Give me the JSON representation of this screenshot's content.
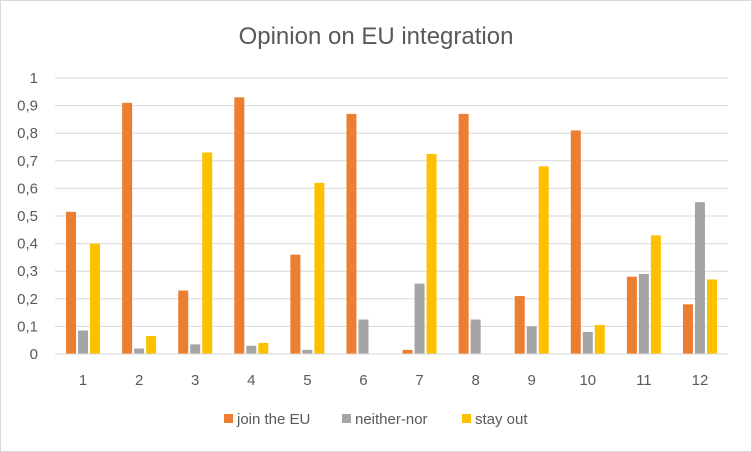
{
  "chart_data": {
    "type": "bar",
    "title": "Opinion on EU integration",
    "xlabel": "",
    "ylabel": "",
    "categories": [
      "1",
      "2",
      "3",
      "4",
      "5",
      "6",
      "7",
      "8",
      "9",
      "10",
      "11",
      "12"
    ],
    "y_ticks": [
      "0",
      "0,1",
      "0,2",
      "0,3",
      "0,4",
      "0,5",
      "0,6",
      "0,7",
      "0,8",
      "0,9",
      "1"
    ],
    "ylim": [
      0,
      1
    ],
    "grid": true,
    "legend_position": "bottom",
    "series": [
      {
        "name": "join the EU",
        "color": "#ED7D31",
        "values": [
          0.515,
          0.91,
          0.23,
          0.93,
          0.36,
          0.87,
          0.015,
          0.87,
          0.21,
          0.81,
          0.28,
          0.18
        ]
      },
      {
        "name": "neither-nor",
        "color": "#A5A5A5",
        "values": [
          0.085,
          0.02,
          0.035,
          0.03,
          0.015,
          0.125,
          0.255,
          0.125,
          0.1,
          0.08,
          0.29,
          0.55
        ]
      },
      {
        "name": "stay out",
        "color": "#FFC000",
        "values": [
          0.4,
          0.065,
          0.73,
          0.04,
          0.62,
          0,
          0.725,
          0,
          0.68,
          0.105,
          0.43,
          0.27
        ]
      }
    ]
  }
}
